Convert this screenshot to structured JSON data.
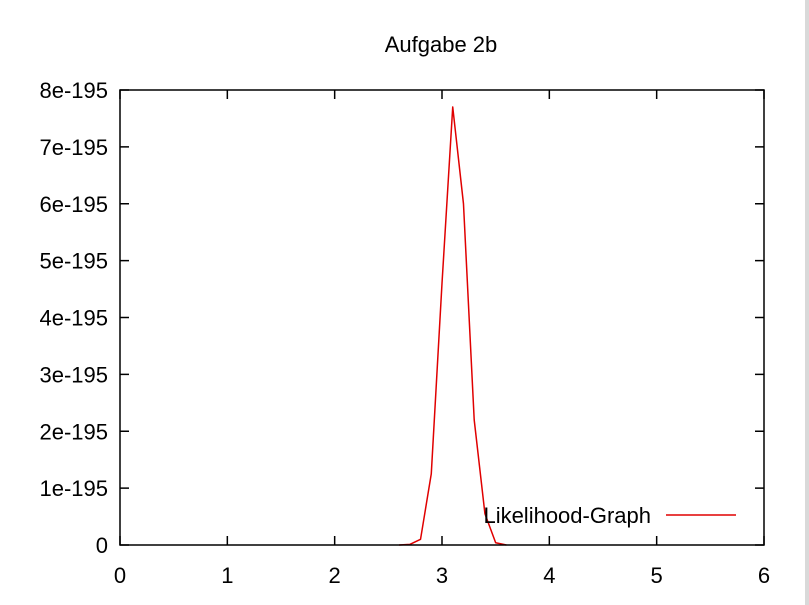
{
  "chart_data": {
    "type": "line",
    "title": "Aufgabe 2b",
    "xlabel": "",
    "ylabel": "",
    "xlim": [
      0,
      6
    ],
    "ylim": [
      0,
      8e-195
    ],
    "x_ticks": [
      0,
      1,
      2,
      3,
      4,
      5,
      6
    ],
    "x_tick_labels": [
      "0",
      "1",
      "2",
      "3",
      "4",
      "5",
      "6"
    ],
    "y_ticks": [
      0,
      1e-195,
      2e-195,
      3e-195,
      4e-195,
      5e-195,
      6e-195,
      7e-195,
      8e-195
    ],
    "y_tick_labels": [
      "0",
      "1e-195",
      "2e-195",
      "3e-195",
      "4e-195",
      "5e-195",
      "6e-195",
      "7e-195",
      "8e-195"
    ],
    "grid": false,
    "legend_position": "bottom-right",
    "series": [
      {
        "name": "Likelihood-Graph",
        "color": "#e00000",
        "x": [
          2.6,
          2.7,
          2.8,
          2.9,
          3.0,
          3.1,
          3.2,
          3.3,
          3.4,
          3.5,
          3.6
        ],
        "y": [
          0,
          1e-197,
          1e-196,
          1.25e-195,
          4.6e-195,
          7.7e-195,
          6e-195,
          2.2e-195,
          5.5e-196,
          4e-197,
          0
        ]
      }
    ]
  }
}
